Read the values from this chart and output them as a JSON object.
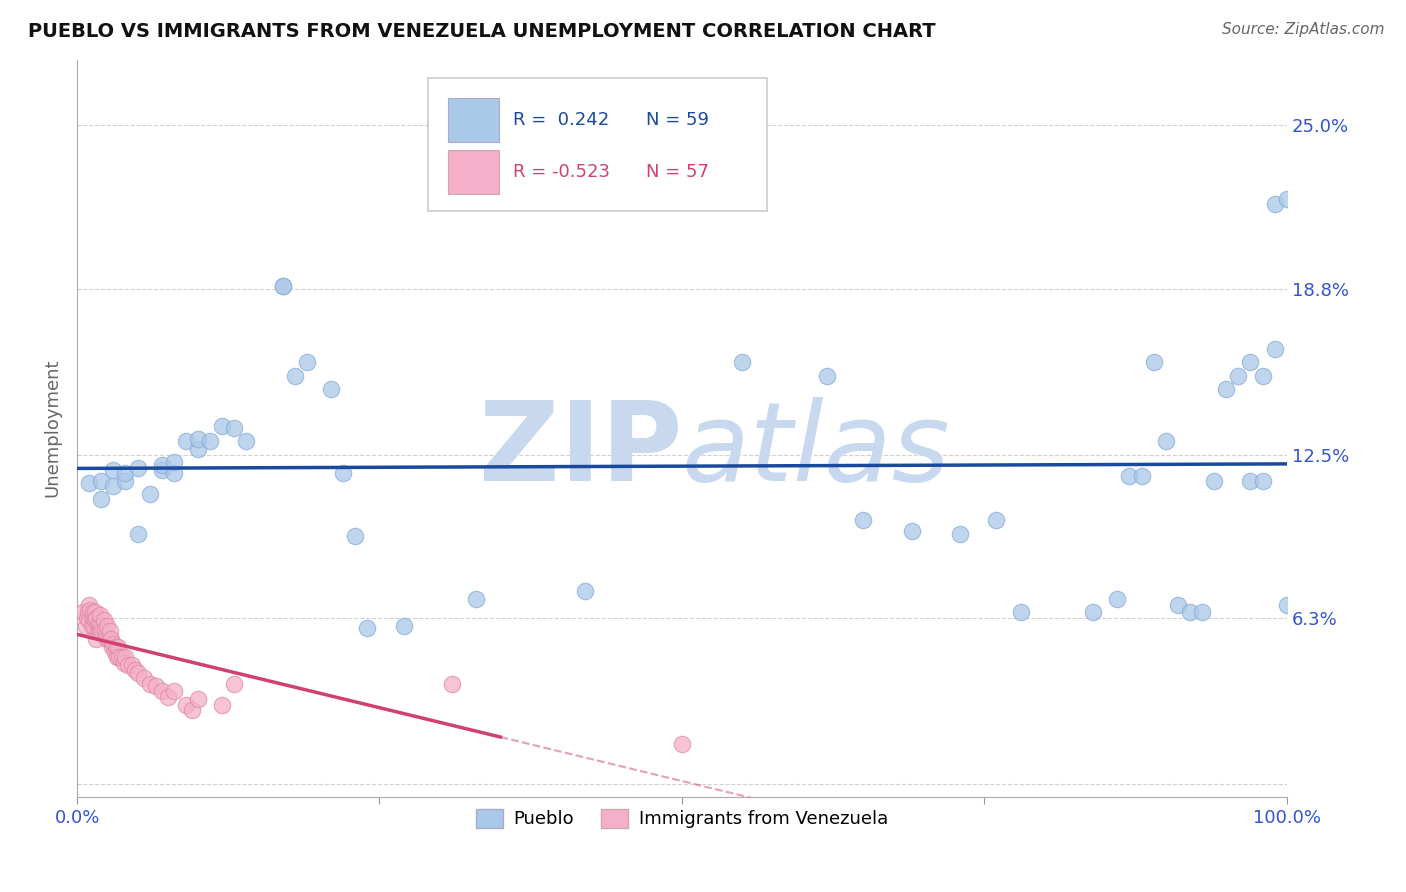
{
  "title": "PUEBLO VS IMMIGRANTS FROM VENEZUELA UNEMPLOYMENT CORRELATION CHART",
  "source": "Source: ZipAtlas.com",
  "ylabel": "Unemployment",
  "xlim": [
    0.0,
    1.0
  ],
  "ylim": [
    -0.005,
    0.275
  ],
  "yticks": [
    0.0,
    0.063,
    0.125,
    0.188,
    0.25
  ],
  "ytick_labels": [
    "",
    "6.3%",
    "12.5%",
    "18.8%",
    "25.0%"
  ],
  "xtick_labels": [
    "0.0%",
    "",
    "",
    "",
    "100.0%"
  ],
  "xticks": [
    0.0,
    0.25,
    0.5,
    0.75,
    1.0
  ],
  "blue_R": 0.242,
  "blue_N": 59,
  "pink_R": -0.523,
  "pink_N": 57,
  "blue_color": "#aac8e8",
  "pink_color": "#f4b0c8",
  "blue_line_color": "#1a4a9e",
  "pink_line_color": "#d04070",
  "watermark_color": "#c8d8ee",
  "background_color": "#ffffff",
  "grid_color": "#cccccc",
  "blue_scatter_x": [
    0.01,
    0.02,
    0.02,
    0.03,
    0.03,
    0.04,
    0.04,
    0.05,
    0.05,
    0.06,
    0.07,
    0.07,
    0.08,
    0.08,
    0.09,
    0.1,
    0.1,
    0.11,
    0.12,
    0.13,
    0.14,
    0.17,
    0.17,
    0.18,
    0.19,
    0.21,
    0.22,
    0.23,
    0.24,
    0.27,
    0.33,
    0.42,
    0.55,
    0.62,
    0.65,
    0.69,
    0.73,
    0.76,
    0.78,
    0.84,
    0.86,
    0.87,
    0.88,
    0.89,
    0.9,
    0.91,
    0.92,
    0.93,
    0.94,
    0.95,
    0.96,
    0.97,
    0.97,
    0.98,
    0.98,
    0.99,
    0.99,
    1.0,
    1.0
  ],
  "blue_scatter_y": [
    0.114,
    0.108,
    0.115,
    0.113,
    0.119,
    0.115,
    0.118,
    0.095,
    0.12,
    0.11,
    0.119,
    0.121,
    0.118,
    0.122,
    0.13,
    0.127,
    0.131,
    0.13,
    0.136,
    0.135,
    0.13,
    0.189,
    0.189,
    0.155,
    0.16,
    0.15,
    0.118,
    0.094,
    0.059,
    0.06,
    0.07,
    0.073,
    0.16,
    0.155,
    0.1,
    0.096,
    0.095,
    0.1,
    0.065,
    0.065,
    0.07,
    0.117,
    0.117,
    0.16,
    0.13,
    0.068,
    0.065,
    0.065,
    0.115,
    0.15,
    0.155,
    0.115,
    0.16,
    0.115,
    0.155,
    0.22,
    0.165,
    0.222,
    0.068
  ],
  "pink_scatter_x": [
    0.005,
    0.007,
    0.008,
    0.009,
    0.01,
    0.01,
    0.011,
    0.012,
    0.013,
    0.013,
    0.014,
    0.015,
    0.015,
    0.016,
    0.016,
    0.017,
    0.018,
    0.018,
    0.019,
    0.019,
    0.02,
    0.021,
    0.022,
    0.023,
    0.024,
    0.025,
    0.025,
    0.026,
    0.027,
    0.028,
    0.029,
    0.03,
    0.031,
    0.032,
    0.033,
    0.034,
    0.035,
    0.037,
    0.039,
    0.04,
    0.042,
    0.045,
    0.048,
    0.05,
    0.055,
    0.06,
    0.065,
    0.07,
    0.075,
    0.08,
    0.09,
    0.095,
    0.1,
    0.12,
    0.13,
    0.31,
    0.5
  ],
  "pink_scatter_y": [
    0.065,
    0.06,
    0.063,
    0.065,
    0.068,
    0.062,
    0.066,
    0.06,
    0.063,
    0.065,
    0.06,
    0.065,
    0.062,
    0.055,
    0.063,
    0.06,
    0.058,
    0.061,
    0.058,
    0.064,
    0.06,
    0.058,
    0.062,
    0.058,
    0.056,
    0.055,
    0.06,
    0.055,
    0.058,
    0.055,
    0.052,
    0.053,
    0.05,
    0.052,
    0.048,
    0.052,
    0.048,
    0.048,
    0.046,
    0.048,
    0.045,
    0.045,
    0.043,
    0.042,
    0.04,
    0.038,
    0.037,
    0.035,
    0.033,
    0.035,
    0.03,
    0.028,
    0.032,
    0.03,
    0.038,
    0.038,
    0.015
  ]
}
